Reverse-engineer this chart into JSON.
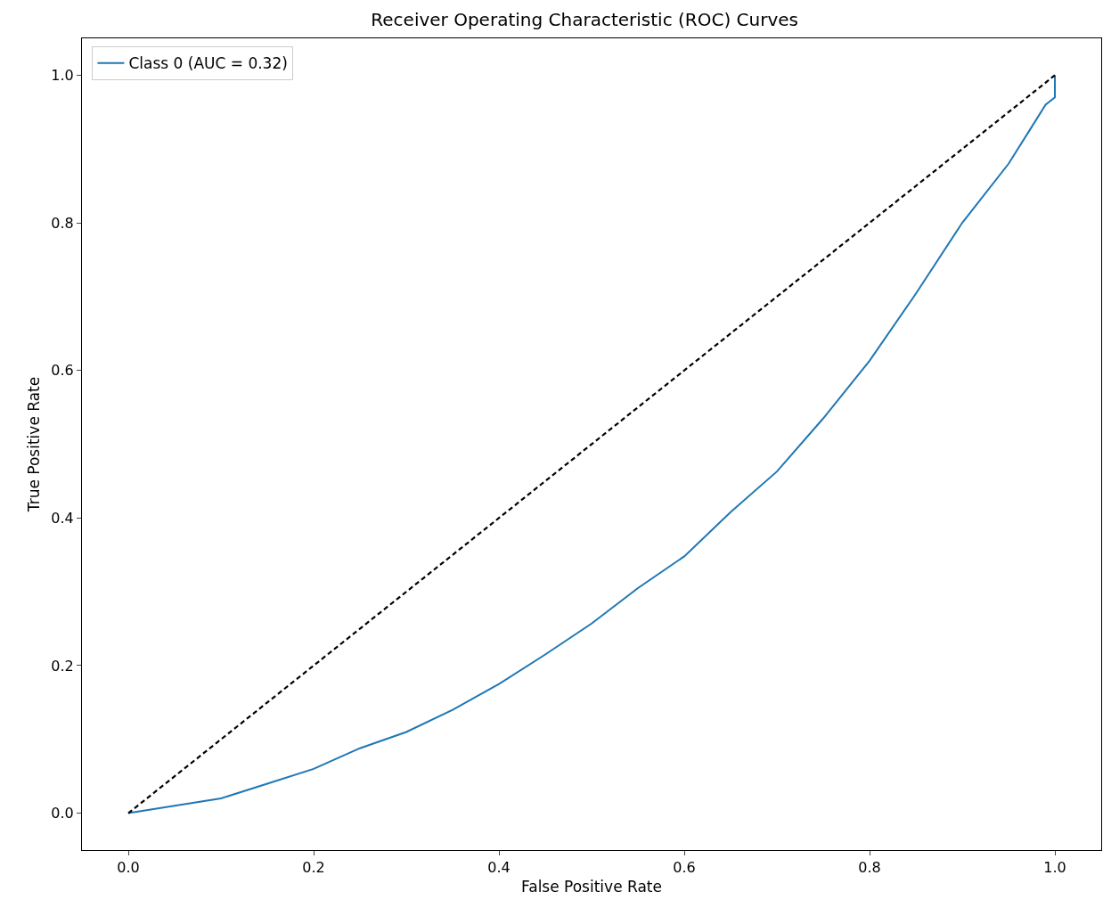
{
  "chart_data": {
    "type": "line",
    "title": "Receiver Operating Characteristic (ROC) Curves",
    "xlabel": "False Positive Rate",
    "ylabel": "True Positive Rate",
    "xlim": [
      -0.05,
      1.05
    ],
    "ylim": [
      -0.05,
      1.05
    ],
    "xticks": [
      {
        "value": 0,
        "label": "0.0"
      },
      0.2,
      0.4,
      0.6,
      0.8,
      {
        "value": 1,
        "label": "1.0"
      }
    ],
    "yticks": [
      {
        "value": 0,
        "label": "0.0"
      },
      0.2,
      0.4,
      0.6,
      0.8,
      {
        "value": 1,
        "label": "1.0"
      }
    ],
    "grid": false,
    "legend": "top left",
    "marker": "none",
    "series": [
      {
        "name": "Class 0 (AUC = 0.32)",
        "color": "#1f77b4",
        "line_style": "solid",
        "x": [
          0,
          0.05,
          0.1,
          0.15,
          0.2,
          0.25,
          0.3,
          0.35,
          0.4,
          0.45,
          0.5,
          0.55,
          0.6,
          0.65,
          0.7,
          0.75,
          0.8,
          0.85,
          0.9,
          0.95,
          0.975,
          0.99,
          1,
          1
        ],
        "values": [
          0,
          0.01,
          0.02,
          0.04,
          0.06,
          0.088,
          0.11,
          0.14,
          0.175,
          0.215,
          0.257,
          0.305,
          0.348,
          0.408,
          0.463,
          0.535,
          0.613,
          0.704,
          0.8,
          0.88,
          0.93,
          0.96,
          0.97,
          1
        ]
      },
      {
        "color": "#000000",
        "line_style": "dashed",
        "x": [
          0,
          1
        ],
        "values": [
          0,
          1
        ]
      }
    ]
  }
}
